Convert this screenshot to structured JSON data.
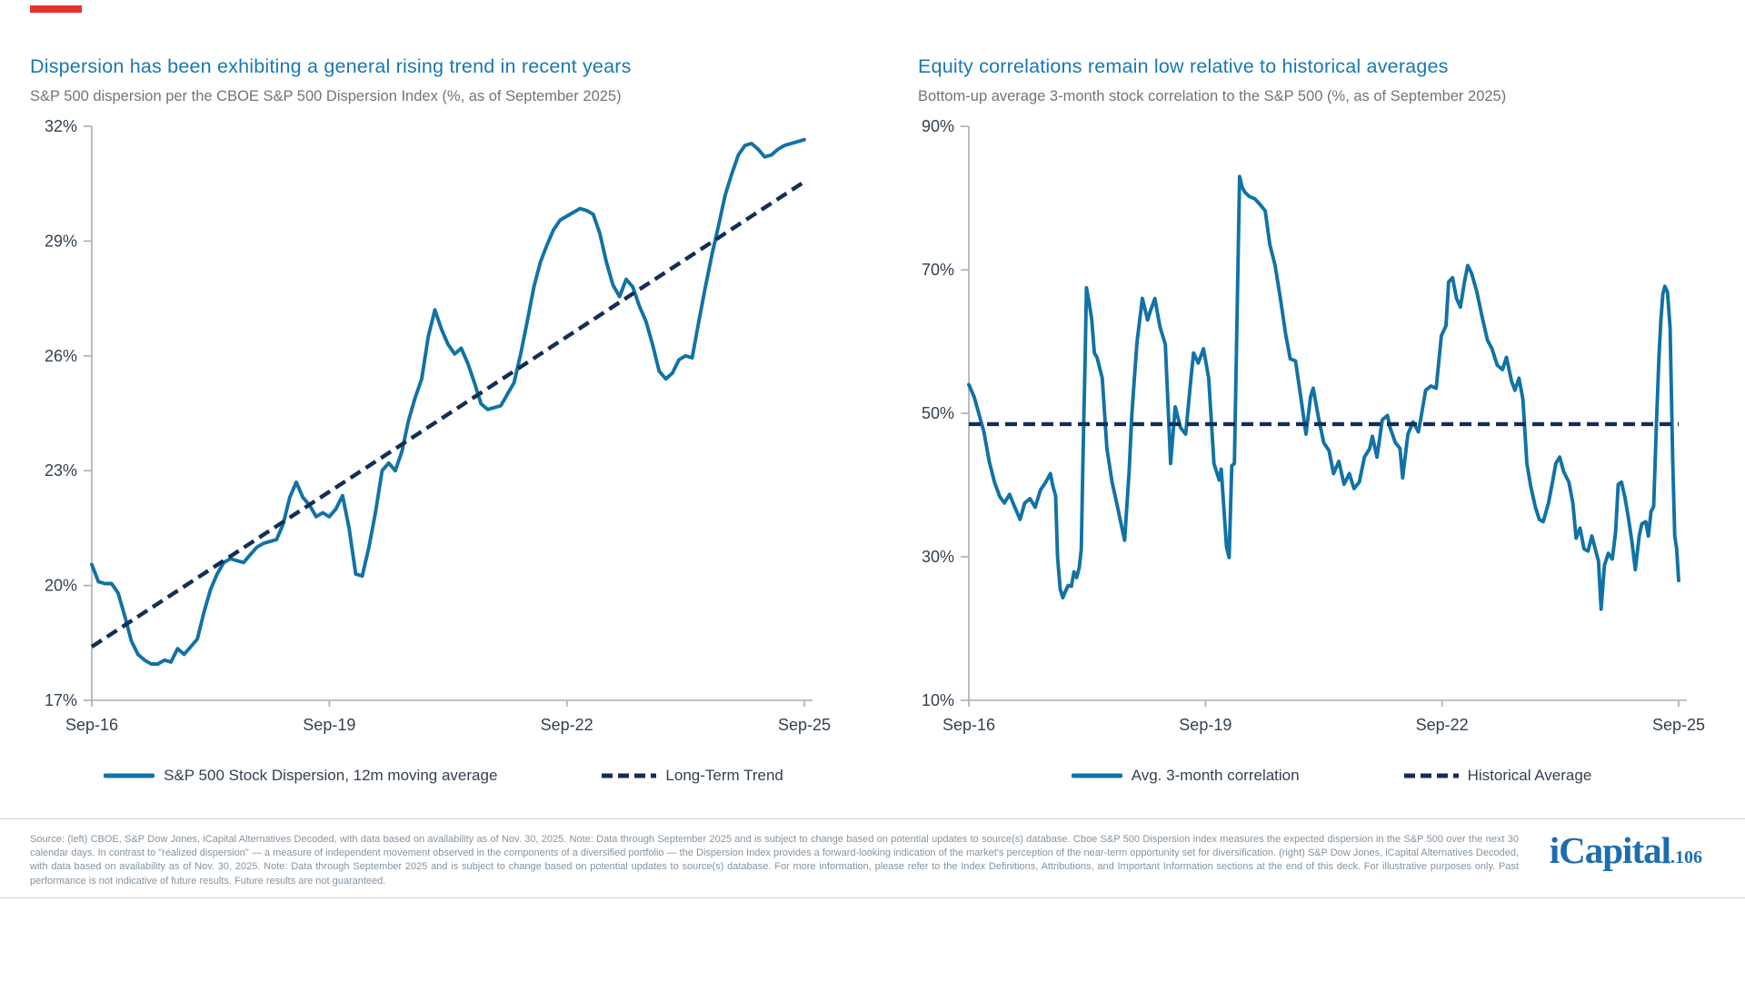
{
  "page": {
    "accent_color": "#E5332D",
    "title_color": "#1878B4"
  },
  "chart_data": [
    {
      "type": "line",
      "title": "Dispersion has been exhibiting a general rising trend in recent years",
      "subtitle": "S&P 500 dispersion per the CBOE S&P 500 Dispersion Index (%, as of September 2025)",
      "x_ticks": [
        "Sep-16",
        "Sep-19",
        "Sep-22",
        "Sep-25"
      ],
      "x_tick_months": [
        0,
        36,
        72,
        108
      ],
      "months_total": 108,
      "ylim": [
        17,
        32
      ],
      "y_ticks": [
        32,
        29,
        26,
        23,
        20,
        17
      ],
      "y_tick_suffix": "%",
      "grid": false,
      "legend_position": "bottom",
      "series": [
        {
          "name": "S&P 500 Stock Dispersion, 12m moving average",
          "style": "solid",
          "color": "#1172A5",
          "monthly_values": [
            20.55,
            20.1,
            20.05,
            20.05,
            19.8,
            19.2,
            18.55,
            18.2,
            18.05,
            17.95,
            17.95,
            18.05,
            18.0,
            18.35,
            18.2,
            18.4,
            18.6,
            19.3,
            19.9,
            20.3,
            20.6,
            20.7,
            20.65,
            20.6,
            20.8,
            21.0,
            21.1,
            21.15,
            21.2,
            21.6,
            22.3,
            22.7,
            22.3,
            22.1,
            21.8,
            21.9,
            21.8,
            22.0,
            22.35,
            21.5,
            20.3,
            20.25,
            21.0,
            21.9,
            23.0,
            23.2,
            23.0,
            23.5,
            24.3,
            24.9,
            25.4,
            26.5,
            27.2,
            26.7,
            26.3,
            26.05,
            26.2,
            25.8,
            25.3,
            24.75,
            24.6,
            24.65,
            24.7,
            25.0,
            25.3,
            26.05,
            26.9,
            27.8,
            28.45,
            28.9,
            29.3,
            29.55,
            29.65,
            29.75,
            29.85,
            29.8,
            29.7,
            29.2,
            28.45,
            27.85,
            27.55,
            28.0,
            27.8,
            27.3,
            26.9,
            26.3,
            25.6,
            25.4,
            25.55,
            25.9,
            26.0,
            25.95,
            26.9,
            27.8,
            28.65,
            29.4,
            30.2,
            30.75,
            31.25,
            31.5,
            31.55,
            31.4,
            31.2,
            31.25,
            31.4,
            31.5,
            31.55,
            31.6,
            31.65
          ]
        },
        {
          "name": "Long-Term Trend",
          "style": "dashed",
          "color": "#132E56",
          "points": [
            [
              0,
              18.4
            ],
            [
              108,
              30.55
            ]
          ]
        }
      ]
    },
    {
      "type": "line",
      "title": "Equity correlations remain low relative to historical averages",
      "subtitle": "Bottom-up average 3-month stock correlation to the S&P 500 (%, as of September 2025)",
      "x_ticks": [
        "Sep-16",
        "Sep-19",
        "Sep-22",
        "Sep-25"
      ],
      "x_tick_months": [
        0,
        36,
        72,
        108
      ],
      "months_total": 108,
      "ylim": [
        10,
        90
      ],
      "y_ticks": [
        90,
        70,
        50,
        30,
        10
      ],
      "y_tick_suffix": "%",
      "grid": false,
      "legend_position": "bottom",
      "series": [
        {
          "name": "Avg. 3-month correlation",
          "style": "solid",
          "color": "#1172A5",
          "points": [
            [
              0,
              54.0
            ],
            [
              0.8,
              52.3
            ],
            [
              1.6,
              49.7
            ],
            [
              2.3,
              47.4
            ],
            [
              3.1,
              43.3
            ],
            [
              3.9,
              40.4
            ],
            [
              4.7,
              38.4
            ],
            [
              5.4,
              37.5
            ],
            [
              6.2,
              38.7
            ],
            [
              7.0,
              36.9
            ],
            [
              7.8,
              35.2
            ],
            [
              8.5,
              37.5
            ],
            [
              9.3,
              38.1
            ],
            [
              10.1,
              36.9
            ],
            [
              10.9,
              39.3
            ],
            [
              11.7,
              40.4
            ],
            [
              12.4,
              41.6
            ],
            [
              12.8,
              39.8
            ],
            [
              13.2,
              38.5
            ],
            [
              13.5,
              30.0
            ],
            [
              13.9,
              25.5
            ],
            [
              14.3,
              24.3
            ],
            [
              14.7,
              25.2
            ],
            [
              15.1,
              26.0
            ],
            [
              15.6,
              25.9
            ],
            [
              16.0,
              27.9
            ],
            [
              16.4,
              27.1
            ],
            [
              16.8,
              28.5
            ],
            [
              17.1,
              31.0
            ],
            [
              17.4,
              45.0
            ],
            [
              17.7,
              58.0
            ],
            [
              17.9,
              67.5
            ],
            [
              18.3,
              65.5
            ],
            [
              18.7,
              63.1
            ],
            [
              19.1,
              58.4
            ],
            [
              19.5,
              57.8
            ],
            [
              20.3,
              54.9
            ],
            [
              21.0,
              45.1
            ],
            [
              21.8,
              40.4
            ],
            [
              22.5,
              37.5
            ],
            [
              23.3,
              34.0
            ],
            [
              23.7,
              32.3
            ],
            [
              24.4,
              42.0
            ],
            [
              24.8,
              49.7
            ],
            [
              25.2,
              55.0
            ],
            [
              25.6,
              60.0
            ],
            [
              26.4,
              66.0
            ],
            [
              26.8,
              64.5
            ],
            [
              27.2,
              63.0
            ],
            [
              27.6,
              64.2
            ],
            [
              28.3,
              66.0
            ],
            [
              28.7,
              64.0
            ],
            [
              29.1,
              62.0
            ],
            [
              29.9,
              59.6
            ],
            [
              30.7,
              43.0
            ],
            [
              31.4,
              50.9
            ],
            [
              32.2,
              48.0
            ],
            [
              33.0,
              47.1
            ],
            [
              33.8,
              54.9
            ],
            [
              34.2,
              58.4
            ],
            [
              34.9,
              57.0
            ],
            [
              35.7,
              59.0
            ],
            [
              36.5,
              54.9
            ],
            [
              37.3,
              43.0
            ],
            [
              38.1,
              40.7
            ],
            [
              38.4,
              42.2
            ],
            [
              39.2,
              31.4
            ],
            [
              39.6,
              29.9
            ],
            [
              40.0,
              42.7
            ],
            [
              40.4,
              43.0
            ],
            [
              41.2,
              83.0
            ],
            [
              41.6,
              81.5
            ],
            [
              42.0,
              80.8
            ],
            [
              42.7,
              80.2
            ],
            [
              43.5,
              79.9
            ],
            [
              44.3,
              79.1
            ],
            [
              45.1,
              78.2
            ],
            [
              45.8,
              73.5
            ],
            [
              46.6,
              70.6
            ],
            [
              47.4,
              66.0
            ],
            [
              48.2,
              61.0
            ],
            [
              48.9,
              57.6
            ],
            [
              49.7,
              57.3
            ],
            [
              50.5,
              52.3
            ],
            [
              51.3,
              47.1
            ],
            [
              52.0,
              52.3
            ],
            [
              52.4,
              53.5
            ],
            [
              53.2,
              49.4
            ],
            [
              54.0,
              45.9
            ],
            [
              54.8,
              44.8
            ],
            [
              55.5,
              41.6
            ],
            [
              56.3,
              43.3
            ],
            [
              57.1,
              40.1
            ],
            [
              57.9,
              41.6
            ],
            [
              58.6,
              39.5
            ],
            [
              59.4,
              40.4
            ],
            [
              60.2,
              43.9
            ],
            [
              61.0,
              45.1
            ],
            [
              61.4,
              46.8
            ],
            [
              62.1,
              43.9
            ],
            [
              62.9,
              49.1
            ],
            [
              63.7,
              49.7
            ],
            [
              64.1,
              48.0
            ],
            [
              64.9,
              45.9
            ],
            [
              65.6,
              45.1
            ],
            [
              66.0,
              41.0
            ],
            [
              66.8,
              47.1
            ],
            [
              67.6,
              48.8
            ],
            [
              68.4,
              47.4
            ],
            [
              68.8,
              49.4
            ],
            [
              69.5,
              53.2
            ],
            [
              70.3,
              53.8
            ],
            [
              71.1,
              53.5
            ],
            [
              71.9,
              60.8
            ],
            [
              72.6,
              62.2
            ],
            [
              73.0,
              68.3
            ],
            [
              73.6,
              68.9
            ],
            [
              74.2,
              66.0
            ],
            [
              74.8,
              64.8
            ],
            [
              75.4,
              68.3
            ],
            [
              75.9,
              70.6
            ],
            [
              76.5,
              69.5
            ],
            [
              77.3,
              66.9
            ],
            [
              78.1,
              63.4
            ],
            [
              78.9,
              60.2
            ],
            [
              79.6,
              59.0
            ],
            [
              80.4,
              56.7
            ],
            [
              81.2,
              56.1
            ],
            [
              81.8,
              57.8
            ],
            [
              82.6,
              54.4
            ],
            [
              83.1,
              53.2
            ],
            [
              83.7,
              54.9
            ],
            [
              84.3,
              52.0
            ],
            [
              84.9,
              43.0
            ],
            [
              85.5,
              39.8
            ],
            [
              86.2,
              36.9
            ],
            [
              86.8,
              35.2
            ],
            [
              87.4,
              34.9
            ],
            [
              88.2,
              37.5
            ],
            [
              88.8,
              40.4
            ],
            [
              89.3,
              43.0
            ],
            [
              89.9,
              43.9
            ],
            [
              90.5,
              41.9
            ],
            [
              91.3,
              40.4
            ],
            [
              91.9,
              37.5
            ],
            [
              92.4,
              32.6
            ],
            [
              93.0,
              34.0
            ],
            [
              93.6,
              31.1
            ],
            [
              94.2,
              30.8
            ],
            [
              94.8,
              32.9
            ],
            [
              95.3,
              31.1
            ],
            [
              95.8,
              29.4
            ],
            [
              96.2,
              22.7
            ],
            [
              96.7,
              28.8
            ],
            [
              97.3,
              30.5
            ],
            [
              97.9,
              29.7
            ],
            [
              98.4,
              33.4
            ],
            [
              98.8,
              40.1
            ],
            [
              99.3,
              40.4
            ],
            [
              99.8,
              38.4
            ],
            [
              100.4,
              35.2
            ],
            [
              100.9,
              32.0
            ],
            [
              101.4,
              28.2
            ],
            [
              102.0,
              32.9
            ],
            [
              102.4,
              34.6
            ],
            [
              103.0,
              34.9
            ],
            [
              103.4,
              32.9
            ],
            [
              103.8,
              36.3
            ],
            [
              104.2,
              37.0
            ],
            [
              104.6,
              48.0
            ],
            [
              105.0,
              57.8
            ],
            [
              105.3,
              63.1
            ],
            [
              105.6,
              66.6
            ],
            [
              105.9,
              67.7
            ],
            [
              106.3,
              66.9
            ],
            [
              106.7,
              61.9
            ],
            [
              107.1,
              43.3
            ],
            [
              107.4,
              32.9
            ],
            [
              107.7,
              31.1
            ],
            [
              108,
              26.7
            ]
          ]
        },
        {
          "name": "Historical Average",
          "style": "dashed",
          "color": "#132E56",
          "points": [
            [
              0,
              48.5
            ],
            [
              108,
              48.5
            ]
          ]
        }
      ]
    }
  ],
  "footer": {
    "source_text": "Source: (left) CBOE, S&P Dow Jones, iCapital Alternatives Decoded, with data based on availability as of Nov. 30, 2025. Note: Data through September 2025 and is subject to change based on potential updates to source(s) database. Cboe S&P 500 Dispersion index measures the expected dispersion in the S&P 500 over the next 30 calendar days. In contrast to \"realized dispersion\" — a measure of independent movement observed in the components of a diversified portfolio — the Dispersion Index provides a forward-looking indication of the market's perception of the near-term opportunity set for diversification. (right) S&P Dow Jones, iCapital Alternatives Decoded, with data based on availability as of Nov. 30, 2025. Note: Data through September 2025 and is subject to change based on potential updates to source(s) database. For more information, please refer to the Index Definitions, Attributions, and Important Information sections at the end of this deck. For illustrative purposes only. Past performance is not indicative of future results. Future results are not guaranteed.",
    "logo_text": "iCapital",
    "page_number": ".106",
    "logo_color": "#1D6EAE"
  }
}
